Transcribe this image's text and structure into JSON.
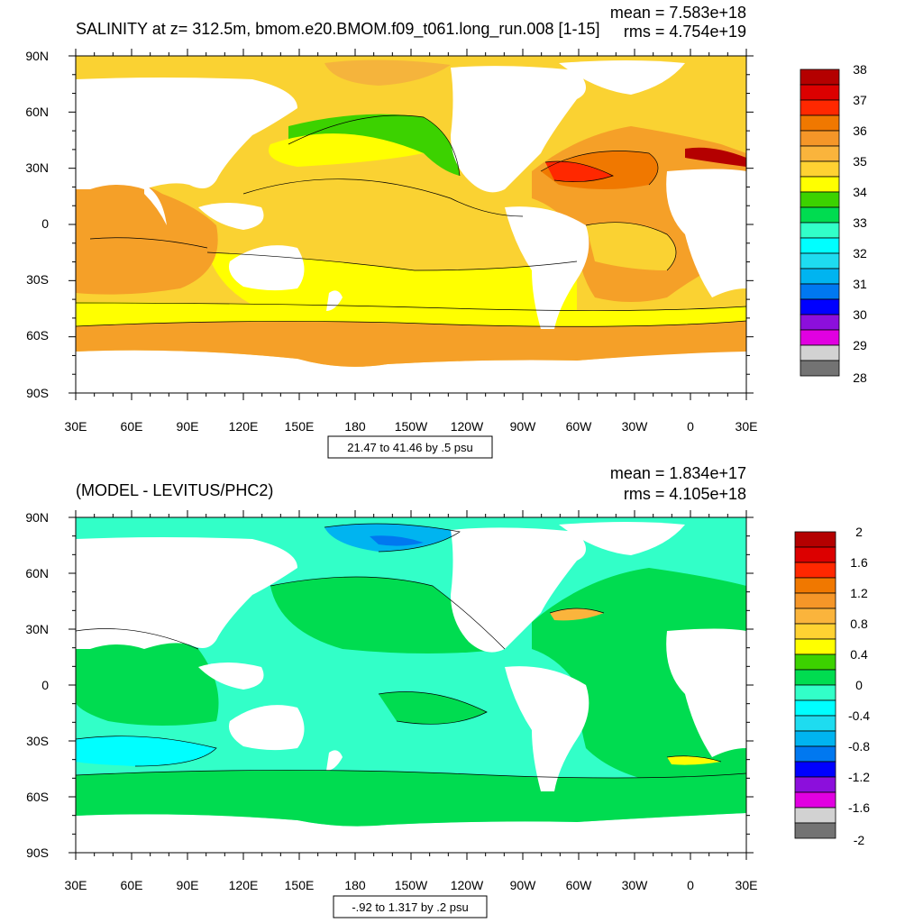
{
  "panels": [
    {
      "id": "top",
      "title": "SALINITY at z= 312.5m, bmom.e20.BMOM.f09_t061.long_run.008 [1-15]",
      "stat_mean": "mean = 7.583e+18",
      "stat_rms": "rms = 4.754e+19",
      "contour_info": "21.47 to 41.46 by .5 psu",
      "y_ticks": [
        "90N",
        "60N",
        "30N",
        "0",
        "30S",
        "60S",
        "90S"
      ],
      "x_ticks": [
        "30E",
        "60E",
        "90E",
        "120E",
        "150E",
        "180",
        "150W",
        "120W",
        "90W",
        "60W",
        "30W",
        "0",
        "30E"
      ],
      "colorbar": {
        "labels": [
          "38",
          "37",
          "36",
          "35",
          "34",
          "33",
          "32",
          "31",
          "30",
          "29",
          "28"
        ],
        "colors": [
          "#b40000",
          "#dc0000",
          "#ff2800",
          "#f07800",
          "#f59628",
          "#fab43c",
          "#ffd232",
          "#ffff00",
          "#3cd200",
          "#00dc50",
          "#32ffc8",
          "#00ffff",
          "#1edcf0",
          "#00b4f0",
          "#0078f0",
          "#0000ff",
          "#8c0fdc",
          "#e100e1",
          "#d2d2d2",
          "#737373"
        ]
      }
    },
    {
      "id": "bottom",
      "title": "(MODEL - LEVITUS/PHC2)",
      "stat_mean": "mean = 1.834e+17",
      "stat_rms": "rms = 4.105e+18",
      "contour_info": "-.92 to 1.317 by .2 psu",
      "y_ticks": [
        "90N",
        "60N",
        "30N",
        "0",
        "30S",
        "60S",
        "90S"
      ],
      "x_ticks": [
        "30E",
        "60E",
        "90E",
        "120E",
        "150E",
        "180",
        "150W",
        "120W",
        "90W",
        "60W",
        "30W",
        "0",
        "30E"
      ],
      "colorbar": {
        "labels": [
          "2",
          "1.6",
          "1.2",
          "0.8",
          "0.4",
          "0",
          "-0.4",
          "-0.8",
          "-1.2",
          "-1.6",
          "-2"
        ],
        "colors": [
          "#b40000",
          "#dc0000",
          "#ff2800",
          "#f07800",
          "#f59628",
          "#fab43c",
          "#ffd232",
          "#ffff00",
          "#3cd200",
          "#00dc50",
          "#32ffc8",
          "#00ffff",
          "#1edcf0",
          "#00b4f0",
          "#0078f0",
          "#0000ff",
          "#8c0fdc",
          "#e100e1",
          "#d2d2d2",
          "#737373"
        ]
      }
    }
  ]
}
